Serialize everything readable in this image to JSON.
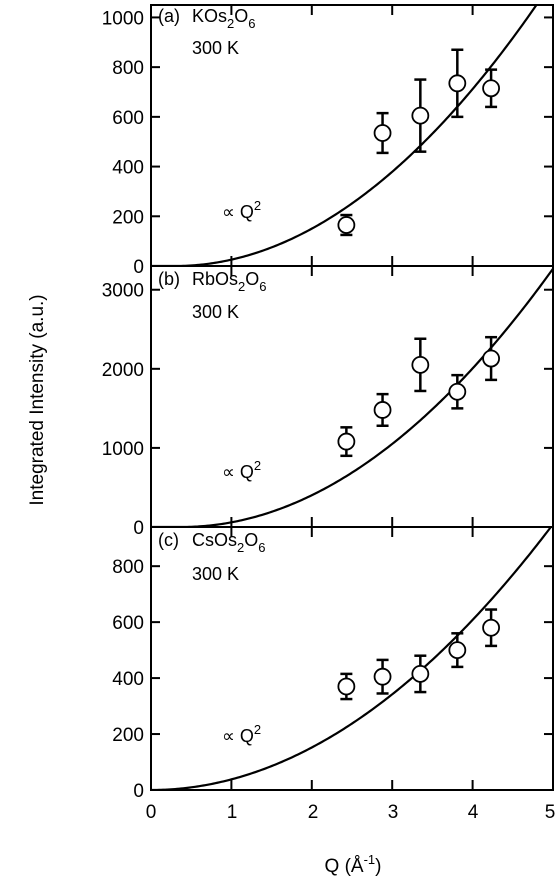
{
  "figure": {
    "ylabel": "Integrated Intensity (a.u.)",
    "xlabel_main": "Q (Å",
    "xlabel_sup": "-1",
    "xlabel_end": ")",
    "x_ticks": [
      "0",
      "1",
      "2",
      "3",
      "4",
      "5"
    ]
  },
  "chart_data": [
    {
      "type": "scatter",
      "panel": "(a)",
      "compound": {
        "base": "KOs",
        "sub1": "2",
        "mid": "O",
        "sub2": "6"
      },
      "temperature": "300 K",
      "curve_label": {
        "text": "∝ Q",
        "sup": "2"
      },
      "xlim": [
        0,
        5
      ],
      "ylim": [
        0,
        1050
      ],
      "y_ticks": [
        0,
        200,
        400,
        600,
        800,
        1000
      ],
      "y_tick_labels": [
        "0",
        "200",
        "400",
        "600",
        "800",
        "1000"
      ],
      "points": [
        {
          "x": 2.43,
          "y": 165,
          "err": 40
        },
        {
          "x": 2.88,
          "y": 535,
          "err": 80
        },
        {
          "x": 3.35,
          "y": 605,
          "err": 145
        },
        {
          "x": 3.81,
          "y": 735,
          "err": 135
        },
        {
          "x": 4.23,
          "y": 715,
          "err": 75
        }
      ],
      "fit": {
        "form": "a*(Q-q0)^2",
        "a": 52.0,
        "q0": 0.3
      }
    },
    {
      "type": "scatter",
      "panel": "(b)",
      "compound": {
        "base": "RbOs",
        "sub1": "2",
        "mid": "O",
        "sub2": "6"
      },
      "temperature": "300 K",
      "curve_label": {
        "text": "∝ Q",
        "sup": "2"
      },
      "xlim": [
        0,
        5
      ],
      "ylim": [
        0,
        3300
      ],
      "y_ticks": [
        0,
        1000,
        2000,
        3000
      ],
      "y_tick_labels": [
        "0",
        "1000",
        "2000",
        "3000"
      ],
      "points": [
        {
          "x": 2.43,
          "y": 1080,
          "err": 180
        },
        {
          "x": 2.88,
          "y": 1480,
          "err": 200
        },
        {
          "x": 3.35,
          "y": 2050,
          "err": 330
        },
        {
          "x": 3.81,
          "y": 1710,
          "err": 210
        },
        {
          "x": 4.23,
          "y": 2130,
          "err": 270
        }
      ],
      "fit": {
        "form": "a*(Q-q0)^2",
        "a": 153.0,
        "q0": 0.38
      }
    },
    {
      "type": "scatter",
      "panel": "(c)",
      "compound": {
        "base": "CsOs",
        "sub1": "2",
        "mid": "O",
        "sub2": "6"
      },
      "temperature": "300 K",
      "curve_label": {
        "text": "∝ Q",
        "sup": "2"
      },
      "xlim": [
        0,
        5
      ],
      "ylim": [
        0,
        940
      ],
      "y_ticks": [
        0,
        200,
        400,
        600,
        800
      ],
      "y_tick_labels": [
        "0",
        "200",
        "400",
        "600",
        "800"
      ],
      "points": [
        {
          "x": 2.43,
          "y": 370,
          "err": 45
        },
        {
          "x": 2.88,
          "y": 405,
          "err": 60
        },
        {
          "x": 3.35,
          "y": 415,
          "err": 65
        },
        {
          "x": 3.81,
          "y": 500,
          "err": 60
        },
        {
          "x": 4.23,
          "y": 580,
          "err": 65
        }
      ],
      "fit": {
        "form": "a*(Q-q0)^2",
        "a": 38.0,
        "q0": 0.0
      }
    }
  ]
}
